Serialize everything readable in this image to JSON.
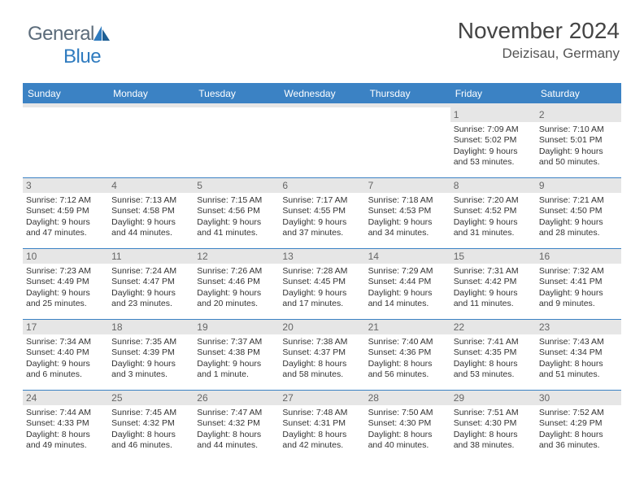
{
  "brand": {
    "part1": "General",
    "part2": "Blue"
  },
  "title": "November 2024",
  "location": "Deizisau, Germany",
  "colors": {
    "headerBlue": "#3b82c4",
    "grayStrip": "#e6e6e6",
    "textDark": "#333333",
    "brandGray": "#5b6b7a",
    "brandBlue": "#2f7bbf"
  },
  "dayNames": [
    "Sunday",
    "Monday",
    "Tuesday",
    "Wednesday",
    "Thursday",
    "Friday",
    "Saturday"
  ],
  "weeks": [
    [
      {
        "n": "",
        "sr": "",
        "ss": "",
        "dl": ""
      },
      {
        "n": "",
        "sr": "",
        "ss": "",
        "dl": ""
      },
      {
        "n": "",
        "sr": "",
        "ss": "",
        "dl": ""
      },
      {
        "n": "",
        "sr": "",
        "ss": "",
        "dl": ""
      },
      {
        "n": "",
        "sr": "",
        "ss": "",
        "dl": ""
      },
      {
        "n": "1",
        "sr": "Sunrise: 7:09 AM",
        "ss": "Sunset: 5:02 PM",
        "dl": "Daylight: 9 hours and 53 minutes."
      },
      {
        "n": "2",
        "sr": "Sunrise: 7:10 AM",
        "ss": "Sunset: 5:01 PM",
        "dl": "Daylight: 9 hours and 50 minutes."
      }
    ],
    [
      {
        "n": "3",
        "sr": "Sunrise: 7:12 AM",
        "ss": "Sunset: 4:59 PM",
        "dl": "Daylight: 9 hours and 47 minutes."
      },
      {
        "n": "4",
        "sr": "Sunrise: 7:13 AM",
        "ss": "Sunset: 4:58 PM",
        "dl": "Daylight: 9 hours and 44 minutes."
      },
      {
        "n": "5",
        "sr": "Sunrise: 7:15 AM",
        "ss": "Sunset: 4:56 PM",
        "dl": "Daylight: 9 hours and 41 minutes."
      },
      {
        "n": "6",
        "sr": "Sunrise: 7:17 AM",
        "ss": "Sunset: 4:55 PM",
        "dl": "Daylight: 9 hours and 37 minutes."
      },
      {
        "n": "7",
        "sr": "Sunrise: 7:18 AM",
        "ss": "Sunset: 4:53 PM",
        "dl": "Daylight: 9 hours and 34 minutes."
      },
      {
        "n": "8",
        "sr": "Sunrise: 7:20 AM",
        "ss": "Sunset: 4:52 PM",
        "dl": "Daylight: 9 hours and 31 minutes."
      },
      {
        "n": "9",
        "sr": "Sunrise: 7:21 AM",
        "ss": "Sunset: 4:50 PM",
        "dl": "Daylight: 9 hours and 28 minutes."
      }
    ],
    [
      {
        "n": "10",
        "sr": "Sunrise: 7:23 AM",
        "ss": "Sunset: 4:49 PM",
        "dl": "Daylight: 9 hours and 25 minutes."
      },
      {
        "n": "11",
        "sr": "Sunrise: 7:24 AM",
        "ss": "Sunset: 4:47 PM",
        "dl": "Daylight: 9 hours and 23 minutes."
      },
      {
        "n": "12",
        "sr": "Sunrise: 7:26 AM",
        "ss": "Sunset: 4:46 PM",
        "dl": "Daylight: 9 hours and 20 minutes."
      },
      {
        "n": "13",
        "sr": "Sunrise: 7:28 AM",
        "ss": "Sunset: 4:45 PM",
        "dl": "Daylight: 9 hours and 17 minutes."
      },
      {
        "n": "14",
        "sr": "Sunrise: 7:29 AM",
        "ss": "Sunset: 4:44 PM",
        "dl": "Daylight: 9 hours and 14 minutes."
      },
      {
        "n": "15",
        "sr": "Sunrise: 7:31 AM",
        "ss": "Sunset: 4:42 PM",
        "dl": "Daylight: 9 hours and 11 minutes."
      },
      {
        "n": "16",
        "sr": "Sunrise: 7:32 AM",
        "ss": "Sunset: 4:41 PM",
        "dl": "Daylight: 9 hours and 9 minutes."
      }
    ],
    [
      {
        "n": "17",
        "sr": "Sunrise: 7:34 AM",
        "ss": "Sunset: 4:40 PM",
        "dl": "Daylight: 9 hours and 6 minutes."
      },
      {
        "n": "18",
        "sr": "Sunrise: 7:35 AM",
        "ss": "Sunset: 4:39 PM",
        "dl": "Daylight: 9 hours and 3 minutes."
      },
      {
        "n": "19",
        "sr": "Sunrise: 7:37 AM",
        "ss": "Sunset: 4:38 PM",
        "dl": "Daylight: 9 hours and 1 minute."
      },
      {
        "n": "20",
        "sr": "Sunrise: 7:38 AM",
        "ss": "Sunset: 4:37 PM",
        "dl": "Daylight: 8 hours and 58 minutes."
      },
      {
        "n": "21",
        "sr": "Sunrise: 7:40 AM",
        "ss": "Sunset: 4:36 PM",
        "dl": "Daylight: 8 hours and 56 minutes."
      },
      {
        "n": "22",
        "sr": "Sunrise: 7:41 AM",
        "ss": "Sunset: 4:35 PM",
        "dl": "Daylight: 8 hours and 53 minutes."
      },
      {
        "n": "23",
        "sr": "Sunrise: 7:43 AM",
        "ss": "Sunset: 4:34 PM",
        "dl": "Daylight: 8 hours and 51 minutes."
      }
    ],
    [
      {
        "n": "24",
        "sr": "Sunrise: 7:44 AM",
        "ss": "Sunset: 4:33 PM",
        "dl": "Daylight: 8 hours and 49 minutes."
      },
      {
        "n": "25",
        "sr": "Sunrise: 7:45 AM",
        "ss": "Sunset: 4:32 PM",
        "dl": "Daylight: 8 hours and 46 minutes."
      },
      {
        "n": "26",
        "sr": "Sunrise: 7:47 AM",
        "ss": "Sunset: 4:32 PM",
        "dl": "Daylight: 8 hours and 44 minutes."
      },
      {
        "n": "27",
        "sr": "Sunrise: 7:48 AM",
        "ss": "Sunset: 4:31 PM",
        "dl": "Daylight: 8 hours and 42 minutes."
      },
      {
        "n": "28",
        "sr": "Sunrise: 7:50 AM",
        "ss": "Sunset: 4:30 PM",
        "dl": "Daylight: 8 hours and 40 minutes."
      },
      {
        "n": "29",
        "sr": "Sunrise: 7:51 AM",
        "ss": "Sunset: 4:30 PM",
        "dl": "Daylight: 8 hours and 38 minutes."
      },
      {
        "n": "30",
        "sr": "Sunrise: 7:52 AM",
        "ss": "Sunset: 4:29 PM",
        "dl": "Daylight: 8 hours and 36 minutes."
      }
    ]
  ]
}
